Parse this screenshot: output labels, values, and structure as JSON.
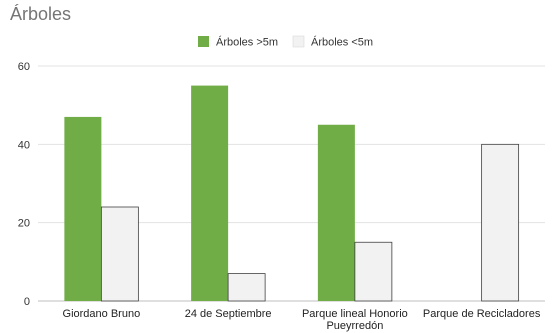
{
  "chart_data": {
    "type": "bar",
    "title": "Árboles",
    "categories": [
      "Giordano Bruno",
      "24 de Septiembre",
      "Parque lineal Honorio Pueyrredón",
      "Parque de Recicladores"
    ],
    "category_lines": [
      [
        "Giordano Bruno"
      ],
      [
        "24 de Septiembre"
      ],
      [
        "Parque lineal Honorio",
        "Pueyrredón"
      ],
      [
        "Parque de Recicladores"
      ]
    ],
    "series": [
      {
        "name": "Árboles >5m",
        "values": [
          47,
          55,
          45,
          0
        ],
        "color": "#70ad47"
      },
      {
        "name": "Árboles  <5m",
        "values": [
          24,
          7,
          15,
          40
        ],
        "color": "#f2f2f2"
      }
    ],
    "ylim": [
      0,
      60
    ],
    "yticks": [
      0,
      20,
      40,
      60
    ],
    "grid": true,
    "legend_position": "top-center"
  }
}
